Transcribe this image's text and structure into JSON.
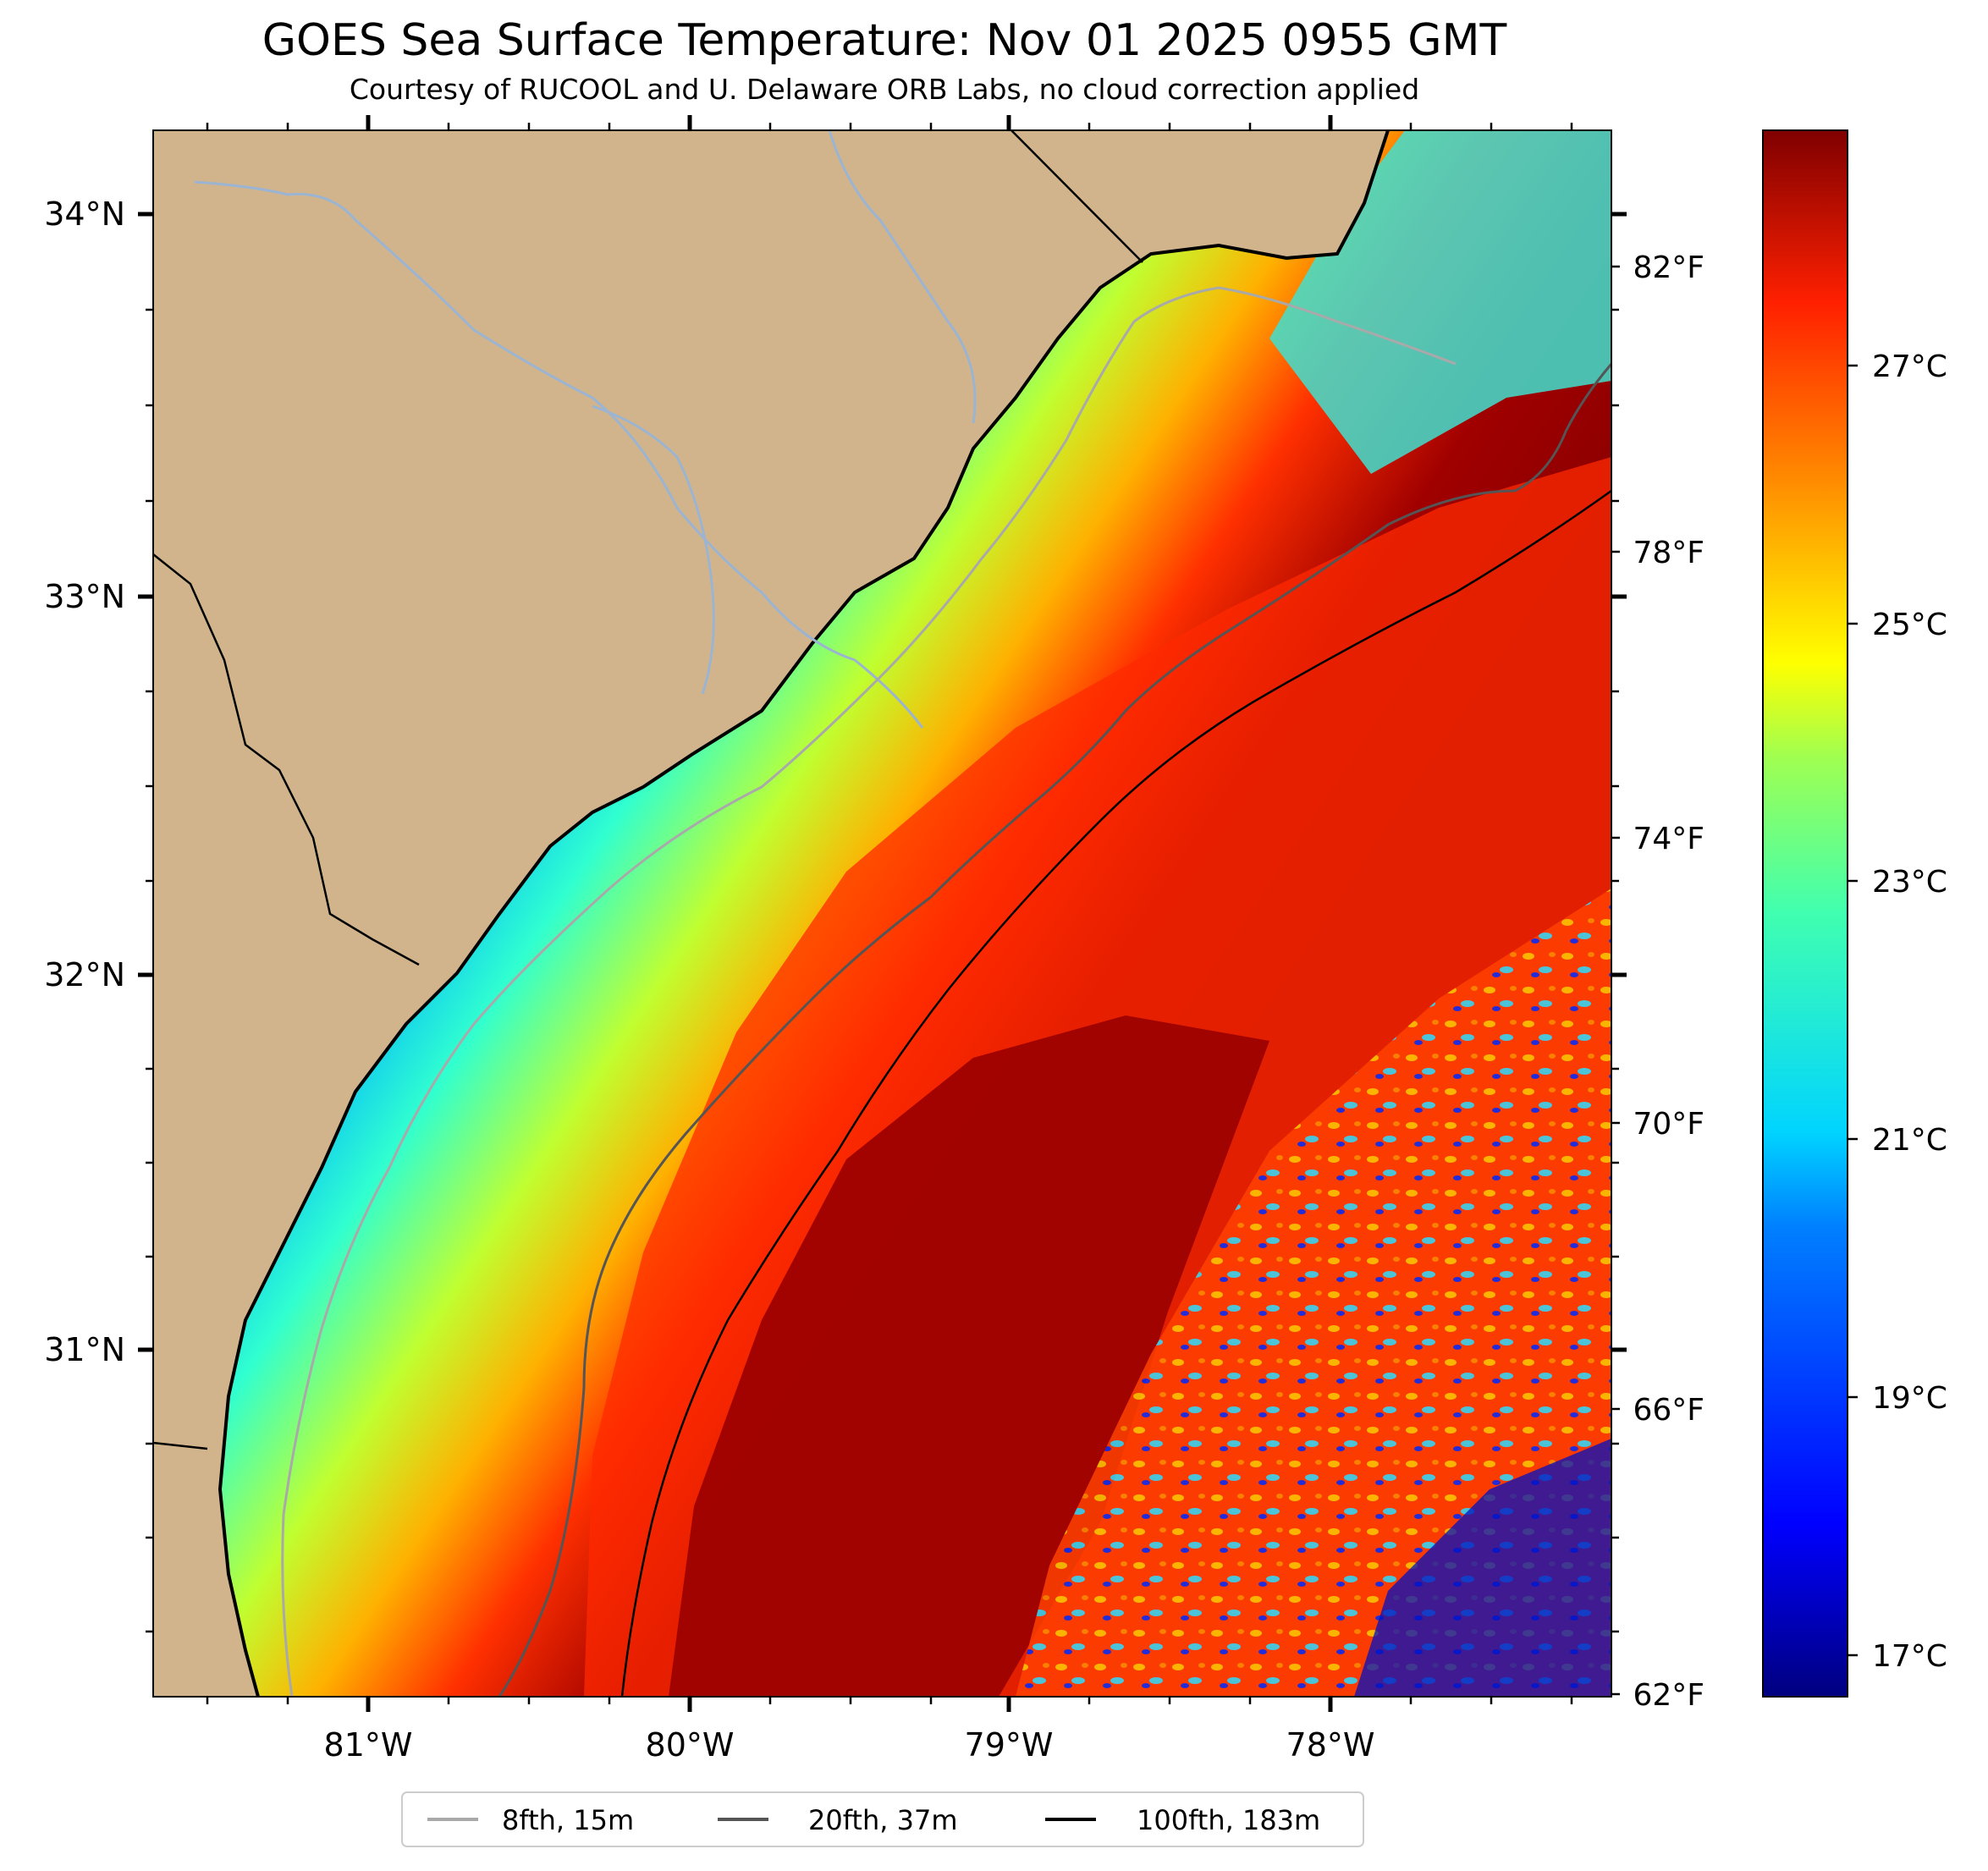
{
  "title": "GOES Sea Surface Temperature: Nov 01 2025 0955 GMT",
  "subtitle": "Courtesy of RUCOOL and U. Delaware ORB Labs, no cloud correction applied",
  "map": {
    "lat_labels": [
      "34°N",
      "33°N",
      "32°N",
      "31°N"
    ],
    "lon_labels": [
      "81°W",
      "80°W",
      "79°W",
      "78°W"
    ],
    "lat_range": [
      30.1,
      34.2
    ],
    "lon_range": [
      -81.65,
      -77.15
    ]
  },
  "colorbar": {
    "celsius_labels": [
      "27°C",
      "25°C",
      "23°C",
      "21°C",
      "19°C",
      "17°C"
    ],
    "fahrenheit_labels": [
      "82°F",
      "78°F",
      "74°F",
      "70°F",
      "66°F",
      "62°F"
    ],
    "celsius_values": [
      27,
      25,
      23,
      21,
      19,
      17
    ],
    "fahrenheit_values": [
      82,
      78,
      74,
      70,
      66,
      62
    ],
    "range_f": [
      62,
      84
    ]
  },
  "legend": {
    "items": [
      {
        "label": "8fth, 15m",
        "color": "#a9a9a9"
      },
      {
        "label": "20fth, 37m",
        "color": "#555555"
      },
      {
        "label": "100fth, 183m",
        "color": "#000000"
      }
    ]
  },
  "colors": {
    "land": "#d2b48c",
    "river": "#9ab4d2",
    "coast": "#000000"
  }
}
